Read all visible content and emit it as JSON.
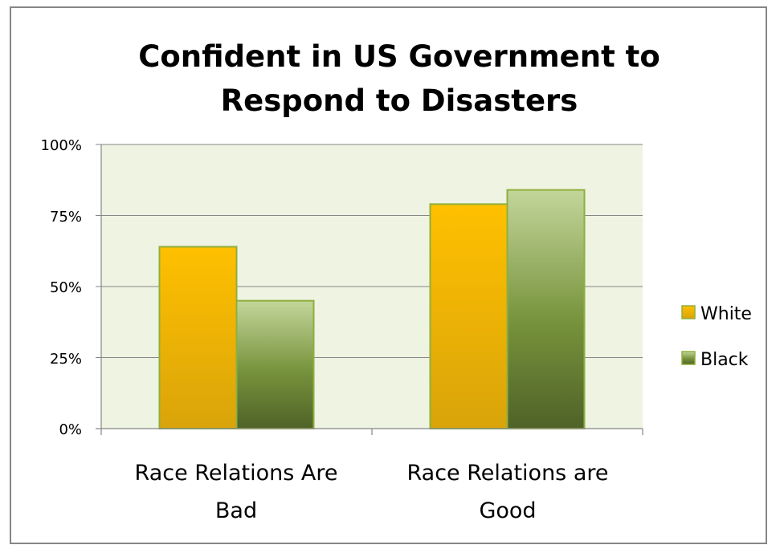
{
  "chart_data": {
    "type": "bar",
    "title_lines": [
      "Confident in US Government to",
      "Respond to Disasters"
    ],
    "categories": [
      [
        "Race Relations Are",
        "Bad"
      ],
      [
        "Race Relations are",
        "Good"
      ]
    ],
    "series": [
      {
        "name": "White",
        "values": [
          64,
          79
        ],
        "color": "#F0B400",
        "color_light": "#FFC000",
        "color_dark": "#D99E0B",
        "stroke": "#8FAF3C"
      },
      {
        "name": "Black",
        "values": [
          45,
          84
        ],
        "color": "#77933C",
        "color_light": "#C3D69B",
        "color_dark": "#4F6228",
        "stroke": "#8FAF3C"
      }
    ],
    "yticks": [
      "0%",
      "25%",
      "50%",
      "75%",
      "100%"
    ],
    "ylim": [
      0,
      100
    ],
    "grid": true,
    "legend": "right",
    "plot_background": "#EEF3E2",
    "gridline_color": "#868686"
  }
}
